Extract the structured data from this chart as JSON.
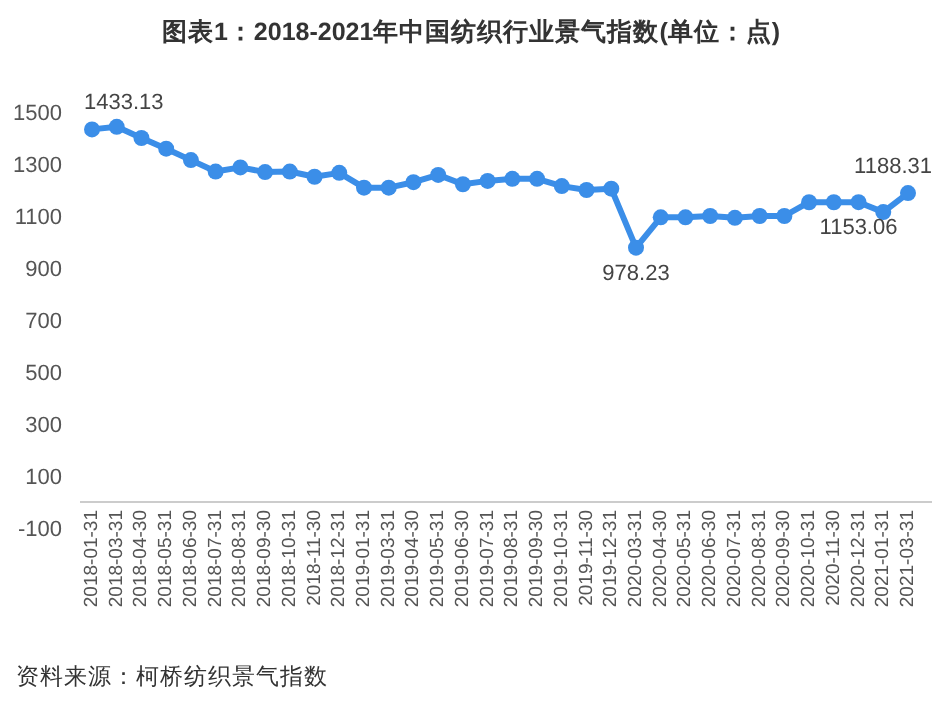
{
  "chart_data": {
    "type": "line",
    "title": "图表1：2018-2021年中国纺织行业景气指数(单位：点)",
    "annotations": [
      "资料来源：柯桥纺织景气指数"
    ],
    "categories": [
      "2018-01-31",
      "2018-03-31",
      "2018-04-30",
      "2018-05-31",
      "2018-06-30",
      "2018-07-31",
      "2018-08-31",
      "2018-09-30",
      "2018-10-31",
      "2018-11-30",
      "2018-12-31",
      "2019-01-31",
      "2019-03-31",
      "2019-04-30",
      "2019-05-31",
      "2019-06-30",
      "2019-07-31",
      "2019-08-31",
      "2019-09-30",
      "2019-10-31",
      "2019-11-30",
      "2019-12-31",
      "2020-03-31",
      "2020-04-30",
      "2020-05-31",
      "2020-06-30",
      "2020-07-31",
      "2020-08-31",
      "2020-09-30",
      "2020-10-31",
      "2020-11-30",
      "2020-12-31",
      "2021-01-31",
      "2021-03-31"
    ],
    "values": [
      1433.13,
      1443,
      1400,
      1359,
      1315,
      1271,
      1287,
      1269,
      1271,
      1251,
      1266,
      1209,
      1209,
      1230,
      1258,
      1222,
      1235,
      1243,
      1243,
      1215,
      1200,
      1205,
      978.23,
      1095,
      1095,
      1100,
      1093,
      1100,
      1100,
      1153,
      1153,
      1153.06,
      1115,
      1188.31
    ],
    "value_labels": [
      "1433.13",
      null,
      null,
      null,
      null,
      null,
      null,
      null,
      null,
      null,
      null,
      null,
      null,
      null,
      null,
      null,
      null,
      null,
      null,
      null,
      null,
      null,
      "978.23",
      null,
      null,
      null,
      null,
      null,
      null,
      null,
      null,
      "1153.06",
      null,
      "1188.31"
    ],
    "color": "#3b8ee8",
    "marker": "circle",
    "grid": false,
    "ylim": [
      -100,
      1500
    ],
    "yticks": [
      -100,
      100,
      300,
      500,
      700,
      900,
      1100,
      1300,
      1500
    ]
  }
}
